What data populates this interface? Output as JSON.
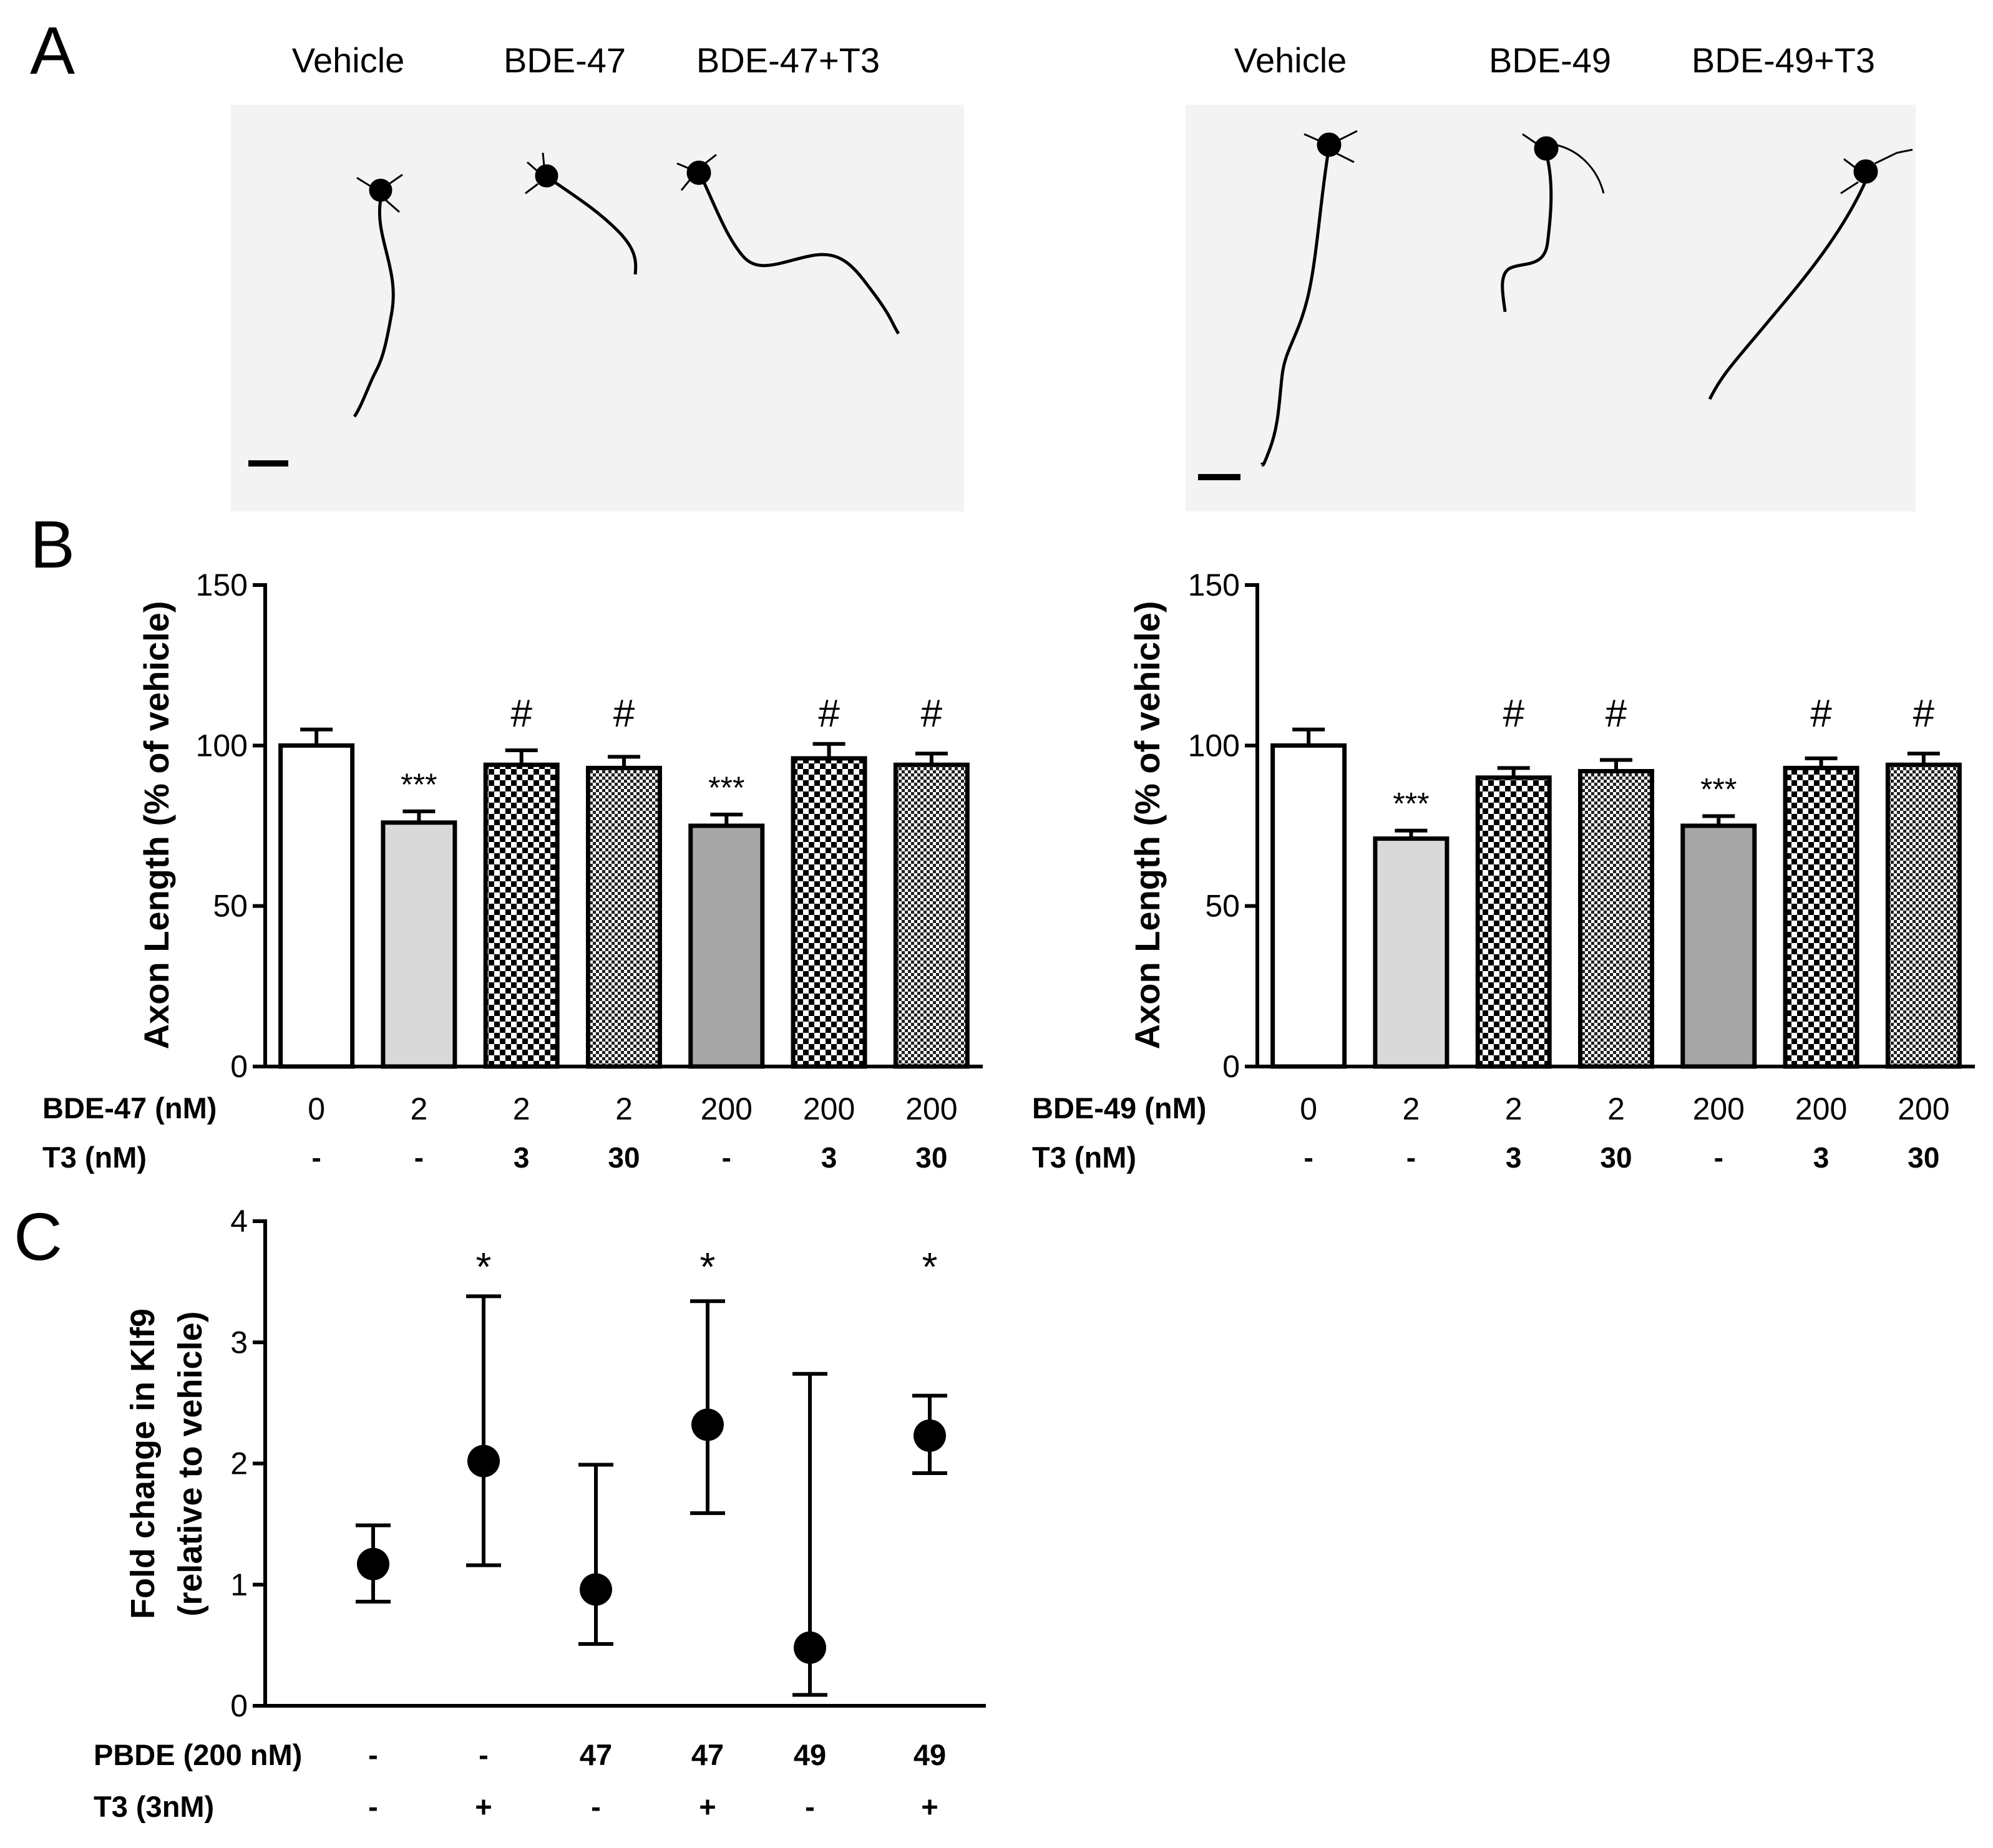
{
  "panel_labels": {
    "a": "A",
    "b": "B",
    "c": "C"
  },
  "panel_a": {
    "left": {
      "labels": [
        "Vehicle",
        "BDE-47",
        "BDE-47+T3"
      ]
    },
    "right": {
      "labels": [
        "Vehicle",
        "BDE-49",
        "BDE-49+T3"
      ]
    }
  },
  "colors": {
    "vehicle_fill": "#ffffff",
    "light_gray": "#d9d9d9",
    "dark_gray": "#a6a6a6",
    "pattern_dark": "#000000",
    "image_bg": "#f3f3f3"
  },
  "chart_data": [
    {
      "id": "bde47",
      "type": "bar",
      "title": "",
      "ylabel": "Axon Length (% of vehicle)",
      "ylim": [
        0,
        150
      ],
      "yticks": [
        0,
        50,
        100,
        150
      ],
      "row_labels": {
        "compound": "BDE-47 (nM)",
        "t3": "T3 (nM)"
      },
      "categories": [
        "0",
        "2",
        "2",
        "2",
        "200",
        "200",
        "200"
      ],
      "t3": [
        "-",
        "-",
        "3",
        "30",
        "-",
        "3",
        "30"
      ],
      "values": [
        100,
        76,
        94,
        93,
        75,
        96,
        94
      ],
      "errors": [
        5,
        3.5,
        4.5,
        3.5,
        3.5,
        4.5,
        3.5
      ],
      "annotations": [
        "",
        "***",
        "#",
        "#",
        "***",
        "#",
        "#"
      ],
      "fills": [
        "white",
        "light",
        "check-coarse",
        "check-fine",
        "dark",
        "check-coarse",
        "check-fine"
      ]
    },
    {
      "id": "bde49",
      "type": "bar",
      "title": "",
      "ylabel": "Axon Length (% of vehicle)",
      "ylim": [
        0,
        150
      ],
      "yticks": [
        0,
        50,
        100,
        150
      ],
      "row_labels": {
        "compound": "BDE-49 (nM)",
        "t3": "T3 (nM)"
      },
      "categories": [
        "0",
        "2",
        "2",
        "2",
        "200",
        "200",
        "200"
      ],
      "t3": [
        "-",
        "-",
        "3",
        "30",
        "-",
        "3",
        "30"
      ],
      "values": [
        100,
        71,
        90,
        92,
        75,
        93,
        94
      ],
      "errors": [
        5,
        2.5,
        3,
        3.5,
        3,
        3,
        3.5
      ],
      "annotations": [
        "",
        "***",
        "#",
        "#",
        "***",
        "#",
        "#"
      ],
      "fills": [
        "white",
        "light",
        "check-coarse",
        "check-fine",
        "dark",
        "check-coarse",
        "check-fine"
      ]
    },
    {
      "id": "klf9",
      "type": "scatter",
      "title": "",
      "ylabel_line1": "Fold change in Klf9",
      "ylabel_line2": "(relative to vehicle)",
      "ylim": [
        0,
        4
      ],
      "yticks": [
        0,
        1,
        2,
        3,
        4
      ],
      "row_labels": {
        "compound": "PBDE (200 nM)",
        "t3": "T3 (3nM)"
      },
      "categories": [
        "-",
        "-",
        "47",
        "47",
        "49",
        "49"
      ],
      "t3": [
        "-",
        "+",
        "-",
        "+",
        "-",
        "+"
      ],
      "values": [
        1.17,
        2.02,
        0.96,
        2.32,
        0.48,
        2.23
      ],
      "err_low": [
        0.86,
        1.16,
        0.51,
        1.59,
        0.09,
        1.92
      ],
      "err_high": [
        1.49,
        3.38,
        1.99,
        3.34,
        2.74,
        2.56
      ],
      "annotations": [
        "",
        "*",
        "",
        "*",
        "",
        "*"
      ]
    }
  ]
}
